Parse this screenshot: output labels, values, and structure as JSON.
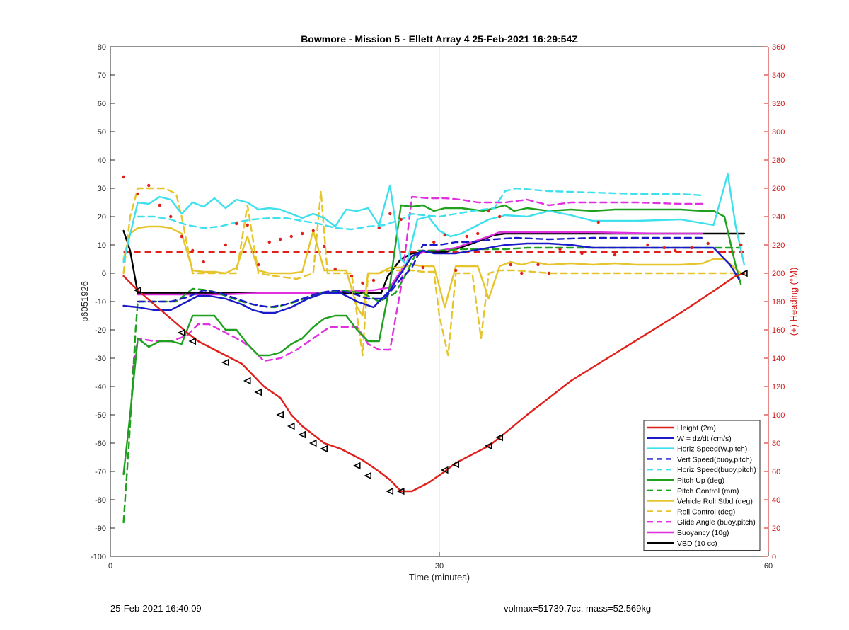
{
  "footer": {
    "left": "25-Feb-2021 16:40:09",
    "right": "volmax=51739.7cc, mass=52.569kg"
  },
  "chart_data": {
    "type": "line",
    "title": "Bowmore - Mission 5 - Ellett Array 4 25-Feb-2021 16:29:54Z",
    "xlabel": "Time (minutes)",
    "ylabel": "p6051926",
    "y2label": "(+) Heading (°M)",
    "xlim": [
      0,
      60
    ],
    "ylim": [
      -100,
      80
    ],
    "y2lim": [
      0,
      360
    ],
    "xticks": [
      0,
      30,
      60
    ],
    "yticks": [
      -100,
      -90,
      -80,
      -70,
      -60,
      -50,
      -40,
      -30,
      -20,
      -10,
      0,
      10,
      20,
      30,
      40,
      50,
      60,
      70,
      80
    ],
    "y2ticks": [
      0,
      20,
      40,
      60,
      80,
      100,
      120,
      140,
      160,
      180,
      200,
      220,
      240,
      260,
      280,
      300,
      320,
      340,
      360
    ],
    "grid": "x=30 only",
    "legend_position": "lower-right",
    "colors": {
      "red": "#e0201b",
      "blue": "#1a1ac8",
      "cyan": "#3ee0ee",
      "green": "#1fa01f",
      "yellow": "#e6c42c",
      "magenta": "#e030e0",
      "black": "#000000",
      "axis_right": "#d11515"
    },
    "series": [
      {
        "name": "Height (2m)",
        "color": "red",
        "style": "solid",
        "x": [
          1.2,
          2.5,
          4,
          5.5,
          7,
          8,
          9,
          10.5,
          12,
          13,
          14,
          15.5,
          16.5,
          17.5,
          18.5,
          19.5,
          21,
          22,
          23,
          24.5,
          25.5,
          26.5,
          27.5,
          29,
          30.5,
          31.5,
          33,
          34.5,
          35.5,
          38,
          42,
          47,
          52,
          55.5,
          57,
          57.8
        ],
        "y": [
          -1,
          -6,
          -11,
          -16,
          -21,
          -24,
          -26,
          -29,
          -32,
          -36,
          -40,
          -44,
          -50,
          -54,
          -57,
          -60,
          -62,
          -64,
          -66,
          -70,
          -73,
          -77,
          -77,
          -74,
          -70,
          -67,
          -64,
          -61,
          -58,
          -50,
          -38,
          -26,
          -14,
          -5,
          -1,
          0
        ]
      },
      {
        "name": "W = dz/dt (cm/s)",
        "color": "blue",
        "style": "solid",
        "x": [
          1.2,
          2.5,
          4,
          5.5,
          7,
          8,
          9,
          10.5,
          12,
          13,
          14,
          15,
          16.5,
          18,
          19.5,
          21,
          22.5,
          24,
          25.5,
          26.5,
          27.5,
          28.5,
          29.5,
          30.5,
          31.5,
          33,
          34.5,
          36,
          38,
          40,
          42,
          44,
          48,
          52,
          55,
          56.5,
          57.3
        ],
        "y": [
          -11.5,
          -12,
          -13,
          -13,
          -10,
          -8,
          -8,
          -9,
          -11,
          -13,
          -14,
          -14,
          -12,
          -9,
          -7,
          -7,
          -10,
          -12,
          -6,
          0,
          6,
          8,
          7,
          7,
          7,
          8,
          9,
          10,
          10.5,
          10.5,
          10,
          9,
          9,
          9,
          9,
          3,
          -2
        ]
      },
      {
        "name": "Horiz Speed(W,pitch)",
        "color": "cyan",
        "style": "solid",
        "x": [
          1.2,
          2.5,
          3.5,
          4.5,
          5.5,
          6.5,
          7.5,
          8.5,
          9.5,
          10.5,
          11.5,
          12.5,
          13.5,
          14.5,
          15.5,
          16.5,
          17.5,
          18.5,
          19.5,
          20.5,
          21.5,
          22.5,
          23.5,
          24.5,
          25.5,
          26.5,
          27,
          28,
          29,
          30,
          31,
          32,
          33,
          34.5,
          36,
          38,
          40,
          42,
          44,
          48,
          52,
          55,
          56.3,
          57,
          57.8
        ],
        "y": [
          4,
          25,
          24.5,
          27,
          26,
          21,
          25,
          23.5,
          26.5,
          23,
          26,
          25,
          22.5,
          23,
          22.5,
          21,
          19.5,
          21,
          19.5,
          16.5,
          22.5,
          22,
          23,
          17,
          31,
          5,
          3,
          19,
          20,
          15,
          13,
          14,
          16,
          19,
          20.5,
          20,
          22,
          20.5,
          18.5,
          18.5,
          19,
          17,
          35,
          17,
          3
        ]
      },
      {
        "name": "Vert Speed(buoy,pitch)",
        "color": "blue",
        "style": "dashed",
        "x": [
          2.5,
          4,
          5.5,
          7,
          8.5,
          10,
          11.5,
          13,
          14.5,
          16,
          17.5,
          19,
          20.5,
          22,
          23.5,
          25,
          26.5,
          27.5,
          28.5,
          30,
          31.5,
          33,
          35,
          37,
          40,
          44,
          48,
          52,
          54
        ],
        "y": [
          -10,
          -10,
          -10,
          -8.5,
          -6,
          -7,
          -9,
          -11,
          -12,
          -11,
          -9,
          -7,
          -6,
          -7,
          -9,
          -9,
          -2,
          2,
          10,
          10,
          11,
          11,
          12,
          12.5,
          12,
          12.5,
          12.5,
          12.5,
          12.5
        ]
      },
      {
        "name": "Horiz Speed(buoy,pitch)",
        "color": "cyan",
        "style": "dashed",
        "x": [
          2.5,
          4,
          5.5,
          7,
          8.5,
          10,
          11.5,
          13,
          14.5,
          16,
          17.5,
          19,
          20.5,
          22,
          23.5,
          25,
          26.5,
          27.5,
          28.5,
          30,
          31.5,
          33,
          35,
          36,
          37,
          40,
          44,
          48,
          52,
          54
        ],
        "y": [
          20,
          20,
          19,
          17,
          16,
          16.5,
          18,
          19,
          19.5,
          19.5,
          18.5,
          17.5,
          16,
          15.5,
          16.5,
          17,
          19,
          21,
          20.5,
          20,
          21,
          22,
          23,
          29,
          30,
          29,
          28.5,
          28,
          28,
          27.5
        ]
      },
      {
        "name": "Pitch Up (deg)",
        "color": "green",
        "style": "solid",
        "x": [
          1.2,
          1.8,
          2.5,
          3.5,
          4.5,
          5.5,
          6.5,
          7.5,
          8.5,
          9.5,
          10.5,
          11.5,
          12.5,
          13.5,
          14.5,
          15.5,
          16.5,
          17.5,
          18.5,
          19.5,
          20.5,
          21.5,
          22.5,
          23.5,
          24.5,
          25.5,
          26.5,
          27.5,
          28.5,
          29.5,
          30.5,
          32,
          34,
          36,
          36.8,
          38,
          40,
          42,
          44,
          46,
          48,
          50,
          52,
          54,
          55,
          56,
          57,
          57.5
        ],
        "y": [
          -71,
          -50,
          -23,
          -26,
          -24,
          -24,
          -25,
          -15,
          -15,
          -15,
          -20,
          -20,
          -25,
          -29,
          -29,
          -28,
          -25,
          -23,
          -19,
          -16,
          -15,
          -15,
          -20,
          -24,
          -24,
          -4,
          24,
          23.5,
          24,
          22,
          23,
          23,
          22,
          24,
          22,
          23,
          22,
          22.5,
          22,
          22.5,
          22.5,
          22.5,
          22.5,
          22,
          22,
          20,
          3,
          -4
        ]
      },
      {
        "name": "Pitch Control (mm)",
        "color": "green",
        "style": "dashed",
        "x": [
          1.2,
          1.7,
          2.3,
          2.5,
          4,
          6,
          7.5,
          9,
          10.5,
          12,
          13.5,
          15,
          17,
          19,
          21,
          23,
          24.5,
          26,
          27,
          28,
          30,
          32,
          34,
          36,
          38,
          40,
          44,
          48,
          52,
          56,
          57.5
        ],
        "y": [
          -88,
          -60,
          -20,
          -10,
          -10,
          -10,
          -5.5,
          -6,
          -8,
          -10,
          -11.5,
          -12,
          -10,
          -7,
          -6,
          -7,
          -10,
          -7,
          0,
          8,
          8,
          8.5,
          8.5,
          8.5,
          9,
          9,
          9,
          9,
          9,
          9,
          9
        ]
      },
      {
        "name": "Vehicle Roll Stbd (deg)",
        "color": "yellow",
        "style": "solid",
        "x": [
          1.2,
          1.8,
          2.5,
          3.5,
          4.5,
          5.5,
          6.5,
          7.5,
          8.5,
          9.5,
          10.5,
          11.5,
          12.5,
          13.5,
          14.5,
          15.5,
          16.5,
          17.5,
          18.5,
          19.5,
          20.5,
          21.5,
          22.5,
          23,
          23.5,
          24.5,
          25.5,
          26.5,
          27.5,
          28.5,
          29.5,
          30.5,
          31.5,
          32.5,
          33.5,
          34.5,
          35.5,
          36.5,
          37.5,
          38.5,
          40,
          42,
          44,
          46,
          48,
          50,
          52,
          54,
          55,
          56,
          57.5
        ],
        "y": [
          5,
          14,
          16,
          16.5,
          16.5,
          16,
          14,
          1,
          0.5,
          0.5,
          0,
          2,
          13,
          1,
          0,
          0,
          0,
          0.5,
          15,
          1,
          1,
          1,
          -12,
          -15,
          0,
          0,
          2,
          2,
          3,
          2.5,
          2.5,
          -12,
          2.5,
          2.5,
          2.5,
          -9,
          2.5,
          4,
          3,
          4,
          3,
          3.5,
          3,
          3.5,
          3,
          3,
          3,
          3.5,
          5,
          5,
          0
        ]
      },
      {
        "name": "Roll Control (deg)",
        "color": "yellow",
        "style": "dashed",
        "x": [
          1.2,
          1.8,
          2.5,
          3.5,
          5,
          6,
          6.5,
          7.5,
          8.5,
          10,
          11.5,
          12.5,
          13.5,
          15,
          17,
          18.5,
          19.2,
          19.8,
          20.3,
          22,
          22.5,
          23,
          23.5,
          24.5,
          25.5,
          26.5,
          27.5,
          28.5,
          29.5,
          30,
          30.8,
          31.5,
          33,
          33.8,
          34.5,
          35.5,
          37,
          40,
          44,
          48,
          52,
          55,
          56,
          57.5
        ],
        "y": [
          0,
          20,
          30,
          30,
          30,
          28,
          20,
          0,
          0,
          0,
          0,
          24,
          0,
          -1,
          -2,
          0,
          29,
          0,
          0,
          0,
          -15,
          -29,
          0,
          0,
          1,
          1,
          1,
          0.5,
          0.5,
          -15,
          -29,
          0,
          0,
          -23,
          0,
          1,
          1,
          0,
          0,
          0,
          0,
          0,
          0,
          0
        ]
      },
      {
        "name": "Glide Angle (buoy,pitch)",
        "color": "magenta",
        "style": "dashed",
        "x": [
          2,
          2.5,
          4,
          5.5,
          7,
          8,
          9,
          10.5,
          12,
          13,
          14,
          15.5,
          17,
          18.5,
          20,
          21.5,
          22.5,
          23.5,
          24.5,
          25.5,
          26.5,
          27.5,
          29,
          30.5,
          32,
          33.5,
          34.5,
          36,
          38,
          40,
          42,
          44,
          48,
          52,
          54
        ],
        "y": [
          -35,
          -23,
          -24,
          -24,
          -22,
          -18,
          -18,
          -21,
          -24,
          -27,
          -31,
          -30,
          -27,
          -23,
          -19,
          -19,
          -19,
          -25,
          -27,
          -27,
          -5,
          27,
          26.5,
          26.5,
          26,
          25,
          25,
          25,
          26,
          24,
          25,
          25,
          25,
          24.5,
          24.5
        ]
      },
      {
        "name": "Buoyancy (10g)",
        "color": "magenta",
        "style": "solid",
        "x": [
          2.5,
          6,
          10,
          14,
          18,
          21,
          24,
          25.5,
          26.5,
          27.5,
          29,
          30,
          31.5,
          33,
          34.5,
          35.5,
          38,
          44,
          50,
          54
        ],
        "y": [
          -7.5,
          -7.5,
          -7.5,
          -7,
          -7,
          -6.5,
          -6,
          -5,
          1,
          6,
          8,
          8,
          9,
          11,
          13,
          14.5,
          14.5,
          14.5,
          14,
          14
        ]
      },
      {
        "name": "VBD (10 cc)",
        "color": "black",
        "style": "solid",
        "x": [
          1.2,
          1.8,
          2.5,
          6,
          10,
          14,
          18,
          22,
          24.7,
          25.3,
          26.5,
          27.5,
          29,
          30.5,
          31.5,
          33,
          35,
          36,
          44,
          52,
          57.8
        ],
        "y": [
          15,
          8,
          -7,
          -7,
          -7,
          -7,
          -7,
          -7,
          -7,
          -1,
          5,
          7,
          7.5,
          7.5,
          8.5,
          10.5,
          13.5,
          14,
          14,
          14,
          14
        ]
      }
    ],
    "heading_reference": {
      "color": "red",
      "style": "dashed",
      "axis": "right",
      "x": [
        1.2,
        57.8
      ],
      "y": [
        215,
        215
      ]
    },
    "heading_points": {
      "color": "red",
      "axis": "right",
      "x": [
        1.2,
        2.5,
        3.5,
        4.5,
        5.5,
        6.5,
        7.5,
        8.5,
        10.5,
        11.5,
        12.5,
        13.5,
        14.5,
        15.5,
        16.5,
        17.5,
        18.5,
        19.5,
        20.5,
        22,
        23,
        24,
        24.5,
        25.5,
        26.5,
        28.5,
        29.5,
        30.5,
        31.5,
        32.5,
        33.5,
        34.5,
        35.5,
        36.5,
        37.5,
        39,
        40,
        41,
        43,
        44.5,
        46,
        48,
        49,
        50.5,
        51.5,
        53,
        54.5,
        56,
        57.5
      ],
      "y": [
        268,
        256,
        262,
        248,
        240,
        226,
        216,
        208,
        220,
        235,
        234,
        206,
        222,
        224,
        226,
        228,
        230,
        219,
        203,
        198,
        193,
        195,
        232,
        242,
        238,
        204,
        222,
        227,
        202,
        226,
        228,
        244,
        240,
        206,
        200,
        206,
        200,
        217,
        214,
        236,
        213,
        215,
        220,
        218,
        216,
        218,
        221,
        215,
        220
      ]
    },
    "markers": {
      "type": "open-triangle",
      "color": "black",
      "x": [
        2.5,
        6.5,
        7.5,
        10.5,
        12.5,
        13.5,
        15.5,
        16.5,
        17.5,
        18.5,
        19.5,
        22.5,
        23.5,
        25.5,
        26.5,
        30.5,
        31.5,
        34.5,
        35.5,
        57.8
      ],
      "y": [
        -6,
        -21,
        -24,
        -31.5,
        -38,
        -42,
        -50,
        -54,
        -57,
        -60,
        -62,
        -68,
        -71.5,
        -77,
        -77,
        -69.5,
        -67.5,
        -61,
        -58,
        0
      ]
    },
    "legend": [
      "Height (2m)",
      "W = dz/dt (cm/s)",
      "Horiz Speed(W,pitch)",
      "Vert Speed(buoy,pitch)",
      "Horiz Speed(buoy,pitch)",
      "Pitch Up (deg)",
      "Pitch Control (mm)",
      "Vehicle Roll Stbd (deg)",
      "Roll Control (deg)",
      "Glide Angle (buoy,pitch)",
      "Buoyancy (10g)",
      "VBD (10 cc)"
    ]
  }
}
